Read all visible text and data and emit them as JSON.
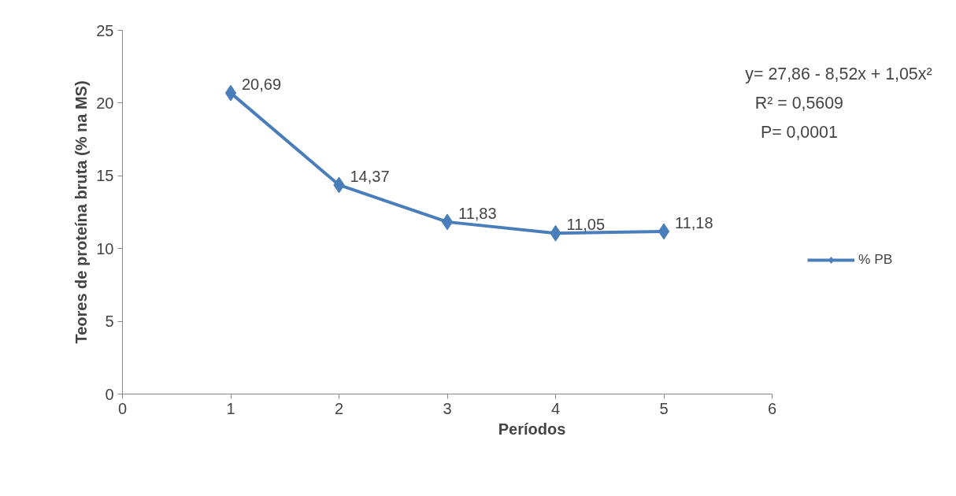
{
  "chart_data": {
    "type": "line",
    "xlabel": "Períodos",
    "ylabel": "Teores de proteína bruta (% na MS)",
    "x": [
      1,
      2,
      3,
      4,
      5
    ],
    "series": [
      {
        "name": "% PB",
        "color": "#4a7ebb",
        "values": [
          20.69,
          14.37,
          11.83,
          11.05,
          11.18
        ],
        "value_labels": [
          "20,69",
          "14,37",
          "11,83",
          "11,05",
          "11,18"
        ]
      }
    ],
    "xlim": [
      0,
      6
    ],
    "xticks": [
      0,
      1,
      2,
      3,
      4,
      5,
      6
    ],
    "ylim": [
      0,
      25
    ],
    "yticks": [
      0,
      5,
      10,
      15,
      20,
      25
    ],
    "grid": false,
    "legend": "right",
    "marker": "diamond",
    "annotations": [
      "y= 27,86 - 8,52x + 1,05x²",
      "R² = 0,5609",
      "P= 0,0001"
    ]
  }
}
